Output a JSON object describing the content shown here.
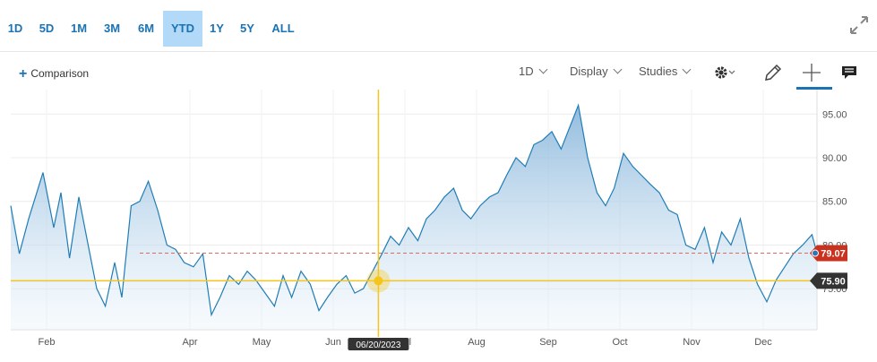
{
  "range_buttons": [
    "1D",
    "5D",
    "1M",
    "3M",
    "6M",
    "YTD",
    "1Y",
    "5Y",
    "ALL"
  ],
  "active_range": "YTD",
  "toolbar": {
    "comparison_label": "Comparison",
    "interval_label": "1D",
    "display_label": "Display",
    "studies_label": "Studies",
    "icons": [
      "gear-icon",
      "pencil-icon",
      "crosshair-icon",
      "news-icon",
      "expand-icon"
    ]
  },
  "colors": {
    "accent": "#1a73b5",
    "line": "#1f7db5",
    "crosshair": "#f6c51c",
    "last_price": "#c8321e",
    "crosshair_tag": "#333333"
  },
  "chart_data": {
    "type": "area",
    "title": "",
    "xlabel": "",
    "ylabel": "",
    "x_tick_labels": [
      "Feb",
      "Apr",
      "May",
      "Jun",
      "Jul",
      "Aug",
      "Sep",
      "Oct",
      "Nov",
      "Dec"
    ],
    "y_tick_labels": [
      "75.00",
      "80.00",
      "85.00",
      "90.00",
      "95.00"
    ],
    "ylim": [
      70.3,
      97.8
    ],
    "x_range_months": [
      0.5,
      11.75
    ],
    "grid": true,
    "series": [
      {
        "x_months": [
          0.5,
          0.62,
          0.75,
          0.95,
          1.1,
          1.2,
          1.32,
          1.45,
          1.58,
          1.7,
          1.82,
          1.95,
          2.05,
          2.18,
          2.3,
          2.42,
          2.55,
          2.68,
          2.8,
          2.92,
          3.05,
          3.18,
          3.3,
          3.42,
          3.55,
          3.68,
          3.8,
          3.92,
          4.05,
          4.18,
          4.3,
          4.42,
          4.55,
          4.68,
          4.8,
          4.92,
          5.05,
          5.18,
          5.3,
          5.42,
          5.55,
          5.68,
          5.8,
          5.92,
          6.05,
          6.18,
          6.3,
          6.42,
          6.55,
          6.68,
          6.8,
          6.92,
          7.05,
          7.18,
          7.3,
          7.42,
          7.55,
          7.68,
          7.8,
          7.92,
          8.05,
          8.18,
          8.3,
          8.42,
          8.55,
          8.68,
          8.8,
          8.92,
          9.05,
          9.18,
          9.3,
          9.42,
          9.55,
          9.68,
          9.8,
          9.92,
          10.05,
          10.18,
          10.3,
          10.42,
          10.55,
          10.68,
          10.8,
          10.92,
          11.05,
          11.18,
          11.3,
          11.42,
          11.55,
          11.68,
          11.75
        ],
        "y": [
          84.5,
          79.0,
          83.0,
          88.3,
          82.0,
          86.0,
          78.5,
          85.5,
          80.0,
          75.0,
          73.0,
          78.0,
          74.0,
          84.5,
          85.0,
          87.3,
          84.0,
          80.0,
          79.5,
          78.0,
          77.5,
          79.0,
          72.0,
          74.0,
          76.5,
          75.5,
          77.0,
          76.0,
          74.5,
          73.0,
          76.5,
          74.0,
          77.0,
          75.5,
          72.5,
          74.0,
          75.5,
          76.5,
          74.5,
          75.0,
          77.0,
          79.0,
          81.0,
          80.0,
          82.0,
          80.5,
          83.0,
          84.0,
          85.5,
          86.5,
          84.0,
          83.0,
          84.5,
          85.5,
          86.0,
          88.0,
          90.0,
          89.0,
          91.5,
          92.0,
          93.0,
          91.0,
          93.5,
          96.0,
          90.0,
          86.0,
          84.5,
          86.5,
          90.5,
          89.0,
          88.0,
          87.0,
          86.0,
          84.0,
          83.5,
          80.0,
          79.5,
          82.0,
          78.0,
          81.5,
          80.0,
          83.0,
          78.5,
          75.5,
          73.5,
          76.0,
          77.5,
          79.0,
          80.0,
          81.2,
          79.07
        ],
        "last_value": 79.07
      }
    ],
    "crosshair": {
      "date_label": "06/20/2023",
      "x_month": 5.63,
      "value": 75.9,
      "value_label": "75.90"
    },
    "last_price_label": "79.07",
    "legend_position": "none"
  }
}
